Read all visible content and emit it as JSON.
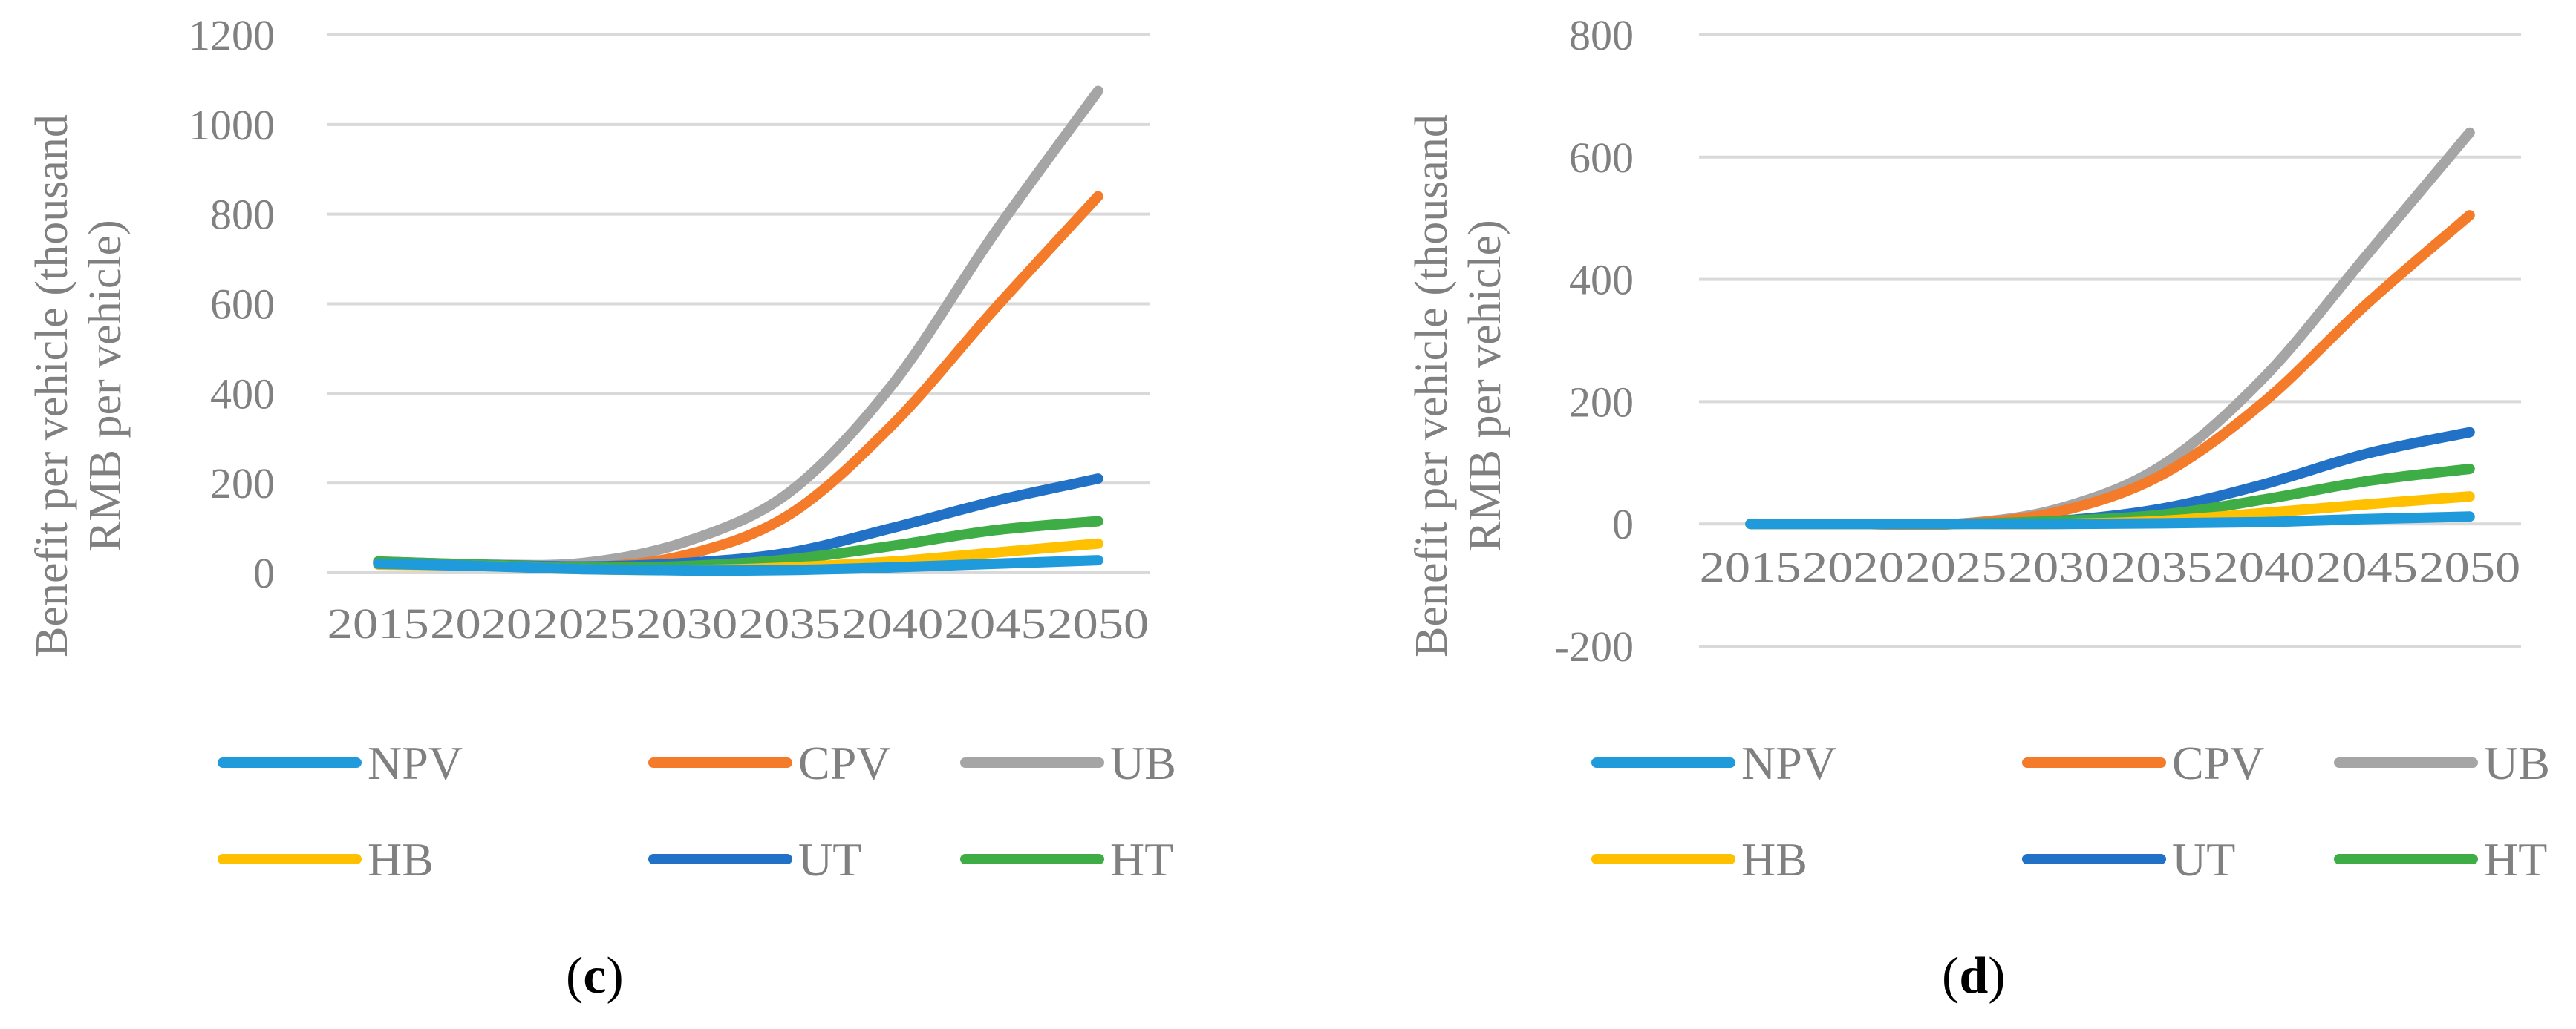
{
  "chart_data": [
    {
      "type": "line",
      "caption_open": "(",
      "caption_letter": "c",
      "caption_close": ")",
      "ylabel": "Benefit per vehicle (thousand RMB per vehicle)",
      "ylabel_lines": [
        "Benefit per vehicle (thousand",
        "RMB per vehicle)"
      ],
      "ylim": [
        0,
        1200
      ],
      "yticks": [
        0,
        200,
        400,
        600,
        800,
        1000,
        1200
      ],
      "x": [
        2015,
        2020,
        2025,
        2030,
        2035,
        2040,
        2045,
        2050
      ],
      "xtick_labels": [
        "2015",
        "2020",
        "2025",
        "2030",
        "2035",
        "2040",
        "2045",
        "2050"
      ],
      "grid": true,
      "legend_position": "bottom",
      "series": [
        {
          "name": "NPV",
          "color": "#1F9ADB",
          "values": [
            20,
            15,
            8,
            5,
            6,
            12,
            20,
            28
          ]
        },
        {
          "name": "CPV",
          "color": "#F47B2A",
          "values": [
            25,
            18,
            12,
            40,
            130,
            330,
            590,
            840
          ]
        },
        {
          "name": "UB",
          "color": "#A5A5A5",
          "values": [
            20,
            18,
            22,
            70,
            180,
            420,
            760,
            1075
          ]
        },
        {
          "name": "HB",
          "color": "#FFC000",
          "values": [
            18,
            15,
            8,
            6,
            12,
            25,
            45,
            65
          ]
        },
        {
          "name": "UT",
          "color": "#2171C7",
          "values": [
            22,
            18,
            14,
            22,
            45,
            100,
            160,
            210
          ]
        },
        {
          "name": "HT",
          "color": "#3FAD45",
          "values": [
            25,
            18,
            12,
            15,
            30,
            60,
            95,
            115
          ]
        }
      ]
    },
    {
      "type": "line",
      "caption_open": "(",
      "caption_letter": "d",
      "caption_close": ")",
      "ylabel": "Benefit per vehicle (thousand RMB per vehicle)",
      "ylabel_lines": [
        "Benefit per vehicle (thousand",
        "RMB per vehicle)"
      ],
      "ylim": [
        -200,
        800
      ],
      "yticks": [
        -200,
        0,
        200,
        400,
        600,
        800
      ],
      "x": [
        2015,
        2020,
        2025,
        2030,
        2035,
        2040,
        2045,
        2050
      ],
      "xtick_labels": [
        "2015",
        "2020",
        "2025",
        "2030",
        "2035",
        "2040",
        "2045",
        "2050"
      ],
      "grid": true,
      "legend_position": "bottom",
      "series": [
        {
          "name": "NPV",
          "color": "#1F9ADB",
          "values": [
            0,
            0,
            0,
            0,
            1,
            3,
            8,
            12
          ]
        },
        {
          "name": "CPV",
          "color": "#F47B2A",
          "values": [
            0,
            0,
            0,
            20,
            80,
            200,
            360,
            505
          ]
        },
        {
          "name": "UB",
          "color": "#A5A5A5",
          "values": [
            0,
            0,
            0,
            25,
            95,
            240,
            440,
            640
          ]
        },
        {
          "name": "HB",
          "color": "#FFC000",
          "values": [
            0,
            0,
            0,
            0,
            5,
            18,
            32,
            45
          ]
        },
        {
          "name": "UT",
          "color": "#2171C7",
          "values": [
            0,
            0,
            0,
            5,
            25,
            65,
            115,
            150
          ]
        },
        {
          "name": "HT",
          "color": "#3FAD45",
          "values": [
            0,
            0,
            0,
            5,
            15,
            40,
            70,
            90
          ]
        }
      ]
    }
  ]
}
